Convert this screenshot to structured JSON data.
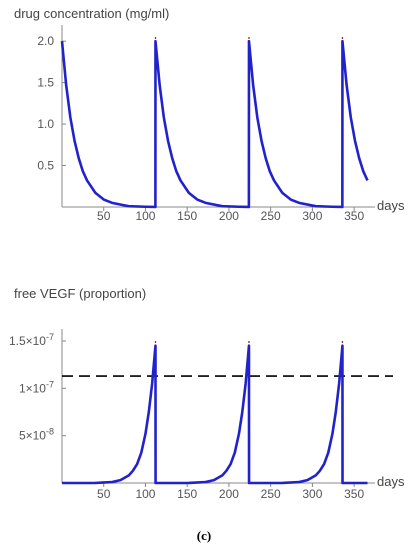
{
  "figure_label": "(c)",
  "chart_data": [
    {
      "type": "line",
      "ylabel": "drug concentration (mg/ml)",
      "xlabel": "days",
      "xlim": [
        0,
        375
      ],
      "ylim": [
        0,
        2.05
      ],
      "x_ticks": [
        50,
        100,
        150,
        200,
        250,
        300,
        350
      ],
      "x_tick_labels": [
        "50",
        "100",
        "150",
        "200",
        "250",
        "300",
        "350"
      ],
      "y_ticks": [
        0.5,
        1.0,
        1.5,
        2.0
      ],
      "y_tick_labels": [
        "0.5",
        "1.0",
        "1.5",
        "2.0"
      ],
      "curve_color": "#2222cc",
      "dose_line_color": "#b22222",
      "dose_days": [
        112,
        224,
        336
      ],
      "series": [
        {
          "x": [
            0,
            5,
            10,
            15,
            20,
            25,
            30,
            40,
            50,
            60,
            80,
            100,
            111.9,
            112,
            117,
            122,
            127,
            132,
            137,
            142,
            152,
            162,
            172,
            192,
            212,
            223.9,
            224,
            229,
            234,
            239,
            244,
            249,
            254,
            264,
            274,
            284,
            304,
            324,
            335.9,
            336,
            341,
            346,
            351,
            356,
            361,
            366
          ],
          "y": [
            2.0,
            1.47,
            1.08,
            0.8,
            0.59,
            0.43,
            0.32,
            0.17,
            0.09,
            0.05,
            0.01,
            0.003,
            0.001,
            2.0,
            1.47,
            1.08,
            0.8,
            0.59,
            0.43,
            0.32,
            0.17,
            0.09,
            0.05,
            0.01,
            0.003,
            0.001,
            2.0,
            1.47,
            1.08,
            0.8,
            0.59,
            0.43,
            0.32,
            0.17,
            0.09,
            0.05,
            0.01,
            0.003,
            0.001,
            2.0,
            1.47,
            1.08,
            0.8,
            0.59,
            0.43,
            0.32
          ]
        }
      ]
    },
    {
      "type": "line",
      "ylabel": "free VEGF (proportion)",
      "xlabel": "days",
      "xlim": [
        0,
        375
      ],
      "ylim": [
        0,
        1.5e-07
      ],
      "x_ticks": [
        50,
        100,
        150,
        200,
        250,
        300,
        350
      ],
      "x_tick_labels": [
        "50",
        "100",
        "150",
        "200",
        "250",
        "300",
        "350"
      ],
      "y_ticks": [
        5e-08,
        1e-07,
        1.5e-07
      ],
      "y_tick_labels": [
        {
          "mantissa": "5",
          "exponent": "-8"
        },
        {
          "mantissa": "1",
          "exponent": "-7"
        },
        {
          "mantissa": "1.5",
          "exponent": "-7"
        }
      ],
      "threshold": 1.13e-07,
      "threshold_color": "#000000",
      "curve_color": "#2222cc",
      "dose_line_color": "#b22222",
      "dose_days": [
        112,
        224,
        336
      ],
      "series": [
        {
          "x": [
            0,
            20,
            40,
            60,
            70,
            80,
            85,
            90,
            95,
            100,
            104,
            108,
            112,
            112.1,
            132,
            152,
            172,
            182,
            192,
            197,
            202,
            207,
            212,
            216,
            220,
            224,
            224.1,
            244,
            264,
            284,
            294,
            304,
            309,
            314,
            319,
            324,
            328,
            332,
            336,
            336.1,
            346,
            356,
            366
          ],
          "y": [
            0,
            0,
            1e-10,
            1e-09,
            3e-09,
            8e-09,
            1.3e-08,
            2e-08,
            3.2e-08,
            5.2e-08,
            7.5e-08,
            1.05e-07,
            1.45e-07,
            0,
            0,
            1e-10,
            1e-09,
            3e-09,
            8e-09,
            1.3e-08,
            2e-08,
            3.2e-08,
            5.2e-08,
            7.5e-08,
            1.05e-07,
            1.45e-07,
            0,
            0,
            1e-10,
            1e-09,
            3e-09,
            8e-09,
            1.3e-08,
            2e-08,
            3.2e-08,
            5.2e-08,
            7.5e-08,
            1.05e-07,
            1.45e-07,
            0,
            0,
            0,
            0
          ]
        }
      ]
    }
  ]
}
